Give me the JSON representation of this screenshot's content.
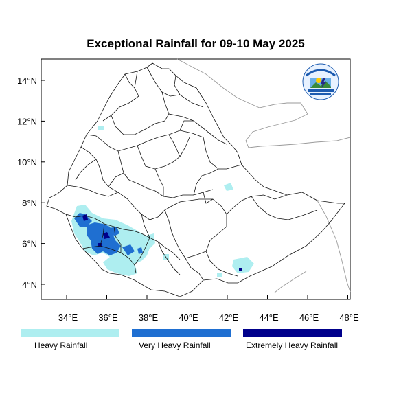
{
  "title": "Exceptional Rainfall for 09-10 May 2025",
  "x_ticks": [
    "34°E",
    "36°E",
    "38°E",
    "40°E",
    "42°E",
    "44°E",
    "46°E",
    "48°E"
  ],
  "y_ticks": [
    "14°N",
    "12°N",
    "10°N",
    "8°N",
    "6°N",
    "4°N"
  ],
  "legend": [
    {
      "label": "Heavy Rainfall",
      "color": "#aeeef0"
    },
    {
      "label": "Very Heavy Rainfall",
      "color": "#1f6fd1"
    },
    {
      "label": "Extremely Heavy Rainfall",
      "color": "#00008b"
    }
  ],
  "logo": {
    "top_text": "ETHIOPIAN METEOROLOGY INSTITUTE",
    "bottom_text": "Ethiopian Meteorology Institute",
    "abbr": "EMI"
  }
}
